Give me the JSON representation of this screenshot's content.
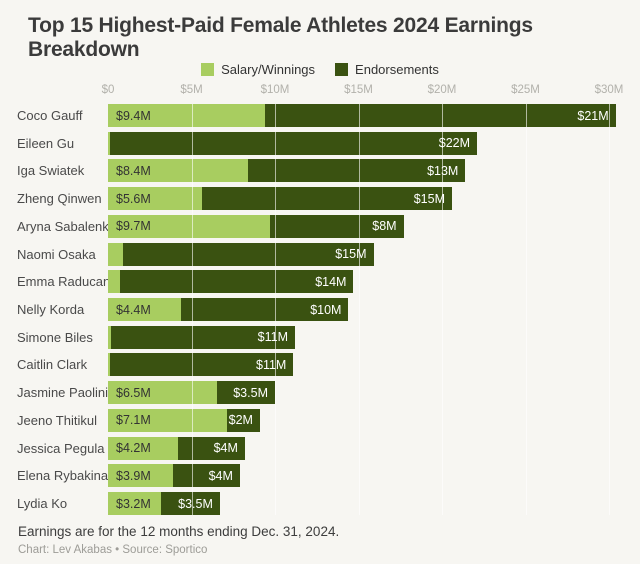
{
  "footer": {
    "note": "Earnings are for the 12 months ending Dec. 31, 2024.",
    "credit": "Chart: Lev Akabas • Source: Sportico"
  },
  "colors": {
    "background": "#f7f6f2",
    "salary": "#a8cd60",
    "endorsements": "#3a5211",
    "title_text": "#3b3b3b",
    "axis_tick_text": "#b2b1ab",
    "name_text": "#4a4a4a",
    "bar_label_dark": "#333333",
    "bar_label_light": "#ffffff",
    "gridline": "rgba(255,255,255,0.6)"
  },
  "chart_data": {
    "type": "bar",
    "orientation": "horizontal",
    "stacked": true,
    "title": "Top 15 Highest-Paid Female Athletes 2024 Earnings Breakdown",
    "categories": [
      "Coco Gauff",
      "Eileen Gu",
      "Iga Swiatek",
      "Zheng Qinwen",
      "Aryna Sabalenka",
      "Naomi Osaka",
      "Emma Raducanu",
      "Nelly Korda",
      "Simone Biles",
      "Caitlin Clark",
      "Jasmine Paolini",
      "Jeeno Thitikul",
      "Jessica Pegula",
      "Elena Rybakina",
      "Lydia Ko"
    ],
    "series": [
      {
        "name": "Salary/Winnings",
        "color": "#a8cd60",
        "values": [
          9.4,
          0.1,
          8.4,
          5.6,
          9.7,
          0.9,
          0.7,
          4.4,
          0.2,
          0.1,
          6.5,
          7.1,
          4.2,
          3.9,
          3.2
        ],
        "labels": [
          "$9.4M",
          "",
          "$8.4M",
          "$5.6M",
          "$9.7M",
          "",
          "",
          "$4.4M",
          "",
          "",
          "$6.5M",
          "$7.1M",
          "$4.2M",
          "$3.9M",
          "$3.2M"
        ]
      },
      {
        "name": "Endorsements",
        "color": "#3a5211",
        "values": [
          21,
          22,
          13,
          15,
          8,
          15,
          14,
          10,
          11,
          11,
          3.5,
          2,
          4,
          4,
          3.5
        ],
        "labels": [
          "$21M",
          "$22M",
          "$13M",
          "$15M",
          "$8M",
          "$15M",
          "$14M",
          "$10M",
          "$11M",
          "$11M",
          "$3.5M",
          "$2M",
          "$4M",
          "$4M",
          "$3.5M"
        ]
      }
    ],
    "x_ticks": {
      "values": [
        0,
        5,
        10,
        15,
        20,
        25,
        30
      ],
      "labels": [
        "$0",
        "$5M",
        "$10M",
        "$15M",
        "$20M",
        "$25M",
        "$30M"
      ]
    },
    "xlim": [
      0,
      31.8
    ],
    "value_unit": "$M",
    "grid": "vertical",
    "legend_position": "top-center"
  }
}
